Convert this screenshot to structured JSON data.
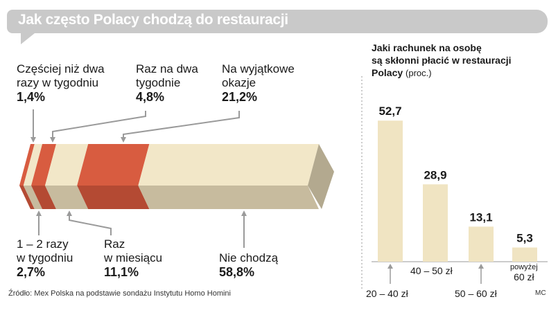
{
  "title": "Jak często Polacy chodzą do restauracji",
  "source": "Źródło: Mex Polska na podstawie sondażu Instytutu Homo Homini",
  "credit": "MC",
  "colors": {
    "red": "#d85c40",
    "cream": "#f2e7c8",
    "shade": "#c7bb9e",
    "gray": "#9a9a9a",
    "bar": "#f0e4c2"
  },
  "chart_data": [
    {
      "type": "bar",
      "orientation": "horizontal-stacked",
      "title": "Jak często Polacy chodzą do restauracji",
      "unit": "%",
      "segments": [
        {
          "label": "Częściej niż dwa razy w tygodniu",
          "value": 1.4,
          "display": "1,4%",
          "color": "red"
        },
        {
          "label": "1 – 2 razy w tygodniu",
          "value": 2.7,
          "display": "2,7%",
          "color": "cream"
        },
        {
          "label": "Raz na dwa tygodnie",
          "value": 4.8,
          "display": "4,8%",
          "color": "red"
        },
        {
          "label": "Raz w miesiącu",
          "value": 11.1,
          "display": "11,1%",
          "color": "cream"
        },
        {
          "label": "Na wyjątkowe okazje",
          "value": 21.2,
          "display": "21,2%",
          "color": "red"
        },
        {
          "label": "Nie chodzą",
          "value": 58.8,
          "display": "58,8%",
          "color": "cream"
        }
      ]
    },
    {
      "type": "bar",
      "title": "Jaki rachunek na osobę są skłonni płacić w restauracji Polacy",
      "unit": "(proc.)",
      "categories": [
        "20 – 40 zł",
        "40 – 50 zł",
        "50 – 60 zł",
        "powyżej 60 zł"
      ],
      "values": [
        52.7,
        28.9,
        13.1,
        5.3
      ],
      "value_labels": [
        "52,7",
        "28,9",
        "13,1",
        "5,3"
      ],
      "ylim": [
        0,
        60
      ]
    }
  ],
  "right_title": {
    "line1": "Jaki rachunek na osobę",
    "line2": "są skłonni płacić w restauracji",
    "line3": "Polacy",
    "unit": "(proc.)"
  },
  "labels_top": [
    {
      "l1": "Częściej niż dwa",
      "l2": "razy w tygodniu",
      "v": "1,4%"
    },
    {
      "l1": "Raz na dwa",
      "l2": "tygodnie",
      "v": "4,8%"
    },
    {
      "l1": "Na wyjątkowe",
      "l2": "okazje",
      "v": "21,2%"
    }
  ],
  "labels_bottom": [
    {
      "l1": "1 – 2 razy",
      "l2": "w tygodniu",
      "v": "2,7%"
    },
    {
      "l1": "Raz",
      "l2": "w miesiącu",
      "v": "11,1%"
    },
    {
      "l1": "",
      "l2": "Nie chodzą",
      "v": "58,8%"
    }
  ],
  "bar_categories": {
    "c0": "20 – 40 zł",
    "c1": "40 – 50 zł",
    "c2": "50 – 60 zł",
    "c3a": "powyżej",
    "c3b": "60 zł"
  }
}
